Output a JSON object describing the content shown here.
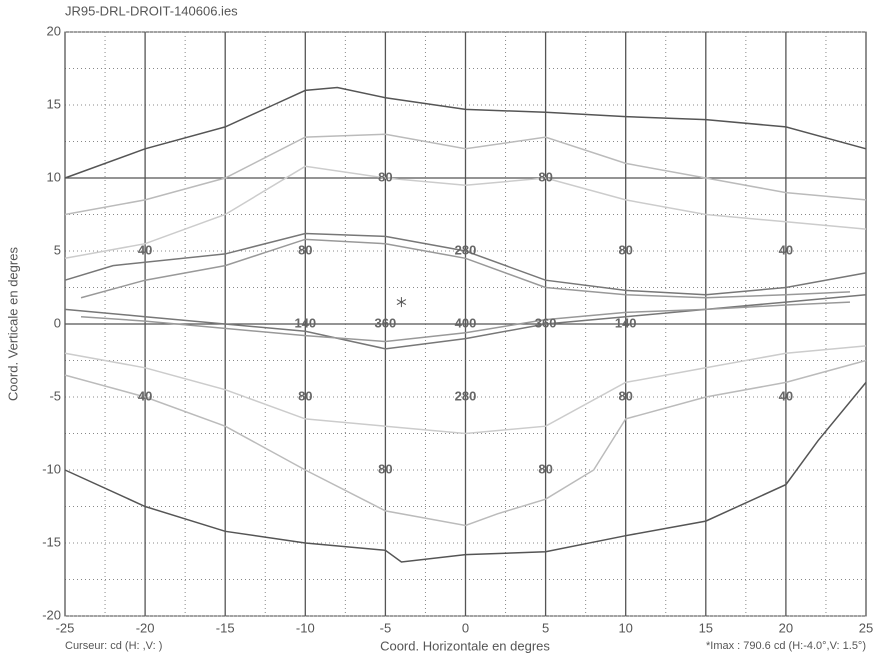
{
  "chart_data": {
    "type": "contour",
    "title": "JR95-DRL-DROIT-140606.ies",
    "xlabel": "Coord. Horizontale en degres",
    "ylabel": "Coord. Verticale en degres",
    "footer_left": "Curseur:  cd (H:  ,V:  )",
    "footer_right": "*Imax : 790.6 cd (H:-4.0°,V: 1.5°)",
    "xlim": [
      -25,
      25
    ],
    "ylim": [
      -20,
      20
    ],
    "xticks": [
      -25,
      -20,
      -15,
      -10,
      -5,
      0,
      5,
      10,
      15,
      20,
      25
    ],
    "yticks": [
      -20,
      -15,
      -10,
      -5,
      0,
      5,
      10,
      15,
      20
    ],
    "minor_xticks": [
      -22.5,
      -17.5,
      -12.5,
      -7.5,
      -2.5,
      2.5,
      7.5,
      12.5,
      17.5,
      22.5
    ],
    "minor_yticks": [
      -17.5,
      -12.5,
      -7.5,
      -2.5,
      2.5,
      7.5,
      12.5,
      17.5
    ],
    "reference_y": [
      10,
      0
    ],
    "grid": true,
    "max_point": {
      "x": -4,
      "y": 1.5
    },
    "contours": [
      {
        "color": "#555555",
        "x": [
          -25,
          -20,
          -15,
          -12,
          -10,
          -8,
          -5,
          0,
          5,
          10,
          15,
          20,
          25
        ],
        "y": [
          10,
          12,
          13.5,
          15,
          16,
          16.2,
          15.5,
          14.7,
          14.5,
          14.2,
          14,
          13.5,
          12
        ]
      },
      {
        "color": "#555555",
        "x": [
          -25,
          -20,
          -15,
          -10,
          -5,
          -4,
          0,
          5,
          10,
          15,
          20,
          22,
          25
        ],
        "y": [
          -10,
          -12.5,
          -14.2,
          -15,
          -15.5,
          -16.3,
          -15.8,
          -15.6,
          -14.5,
          -13.5,
          -11,
          -8,
          -4
        ]
      },
      {
        "color": "#bbbbbb",
        "x": [
          -25,
          -20,
          -15,
          -10,
          -5,
          0,
          5,
          10,
          15,
          20,
          25
        ],
        "y": [
          7.5,
          8.5,
          10,
          12.8,
          13,
          12,
          12.8,
          11,
          10,
          9,
          8.5
        ]
      },
      {
        "color": "#bbbbbb",
        "x": [
          -25,
          -20,
          -15,
          -10,
          -5,
          0,
          2,
          5,
          8,
          10,
          15,
          20,
          25
        ],
        "y": [
          -3.5,
          -5,
          -7,
          -10,
          -12.8,
          -13.8,
          -13,
          -12,
          -10,
          -6.5,
          -5,
          -4,
          -2.5
        ]
      },
      {
        "color": "#cccccc",
        "x": [
          -25,
          -20,
          -15,
          -10,
          -5,
          0,
          5,
          10,
          15,
          20,
          25
        ],
        "y": [
          4.5,
          5.5,
          7.5,
          10.8,
          10,
          9.5,
          10,
          8.5,
          7.5,
          7,
          6.5
        ]
      },
      {
        "color": "#cccccc",
        "x": [
          -25,
          -20,
          -15,
          -10,
          -5,
          0,
          5,
          10,
          15,
          20,
          25
        ],
        "y": [
          -2,
          -3,
          -4.5,
          -6.5,
          -7,
          -7.5,
          -7,
          -4,
          -3,
          -2,
          -1.5
        ]
      },
      {
        "color": "#777777",
        "x": [
          -25,
          -22,
          -15,
          -10,
          -5,
          0,
          5,
          10,
          15,
          20,
          25
        ],
        "y": [
          3,
          4,
          4.8,
          6.2,
          6,
          5,
          3,
          2.3,
          2,
          2.5,
          3.5
        ]
      },
      {
        "color": "#777777",
        "x": [
          -25,
          -20,
          -10,
          -5,
          0,
          5,
          10,
          15,
          20,
          25
        ],
        "y": [
          1,
          0.5,
          -0.5,
          -1.7,
          -1,
          0,
          0.5,
          1,
          1.5,
          2
        ]
      },
      {
        "color": "#999999",
        "x": [
          -24,
          -20,
          -15,
          -10,
          -5,
          0,
          5,
          10,
          15,
          20,
          24
        ],
        "y": [
          1.8,
          3,
          4,
          5.8,
          5.5,
          4.5,
          2.5,
          2,
          1.8,
          2,
          2.2
        ]
      },
      {
        "color": "#999999",
        "x": [
          -24,
          -20,
          -10,
          -5,
          0,
          5,
          10,
          15,
          20,
          24
        ],
        "y": [
          0.5,
          0.2,
          -0.8,
          -1.2,
          -0.6,
          0.3,
          0.8,
          1,
          1.3,
          1.5
        ]
      }
    ],
    "contour_labels": [
      {
        "value": 80,
        "x": -5,
        "y": 10
      },
      {
        "value": 80,
        "x": 5,
        "y": 10
      },
      {
        "value": 40,
        "x": -20,
        "y": 5
      },
      {
        "value": 80,
        "x": -10,
        "y": 5
      },
      {
        "value": 280,
        "x": 0,
        "y": 5
      },
      {
        "value": 80,
        "x": 10,
        "y": 5
      },
      {
        "value": 40,
        "x": 20,
        "y": 5
      },
      {
        "value": 140,
        "x": -10,
        "y": 0
      },
      {
        "value": 360,
        "x": -5,
        "y": 0
      },
      {
        "value": 400,
        "x": 0,
        "y": 0
      },
      {
        "value": 360,
        "x": 5,
        "y": 0
      },
      {
        "value": 140,
        "x": 10,
        "y": 0
      },
      {
        "value": 40,
        "x": -20,
        "y": -5
      },
      {
        "value": 80,
        "x": -10,
        "y": -5
      },
      {
        "value": 280,
        "x": 0,
        "y": -5
      },
      {
        "value": 80,
        "x": 10,
        "y": -5
      },
      {
        "value": 40,
        "x": 20,
        "y": -5
      },
      {
        "value": 80,
        "x": -5,
        "y": -10
      },
      {
        "value": 80,
        "x": 5,
        "y": -10
      }
    ]
  }
}
